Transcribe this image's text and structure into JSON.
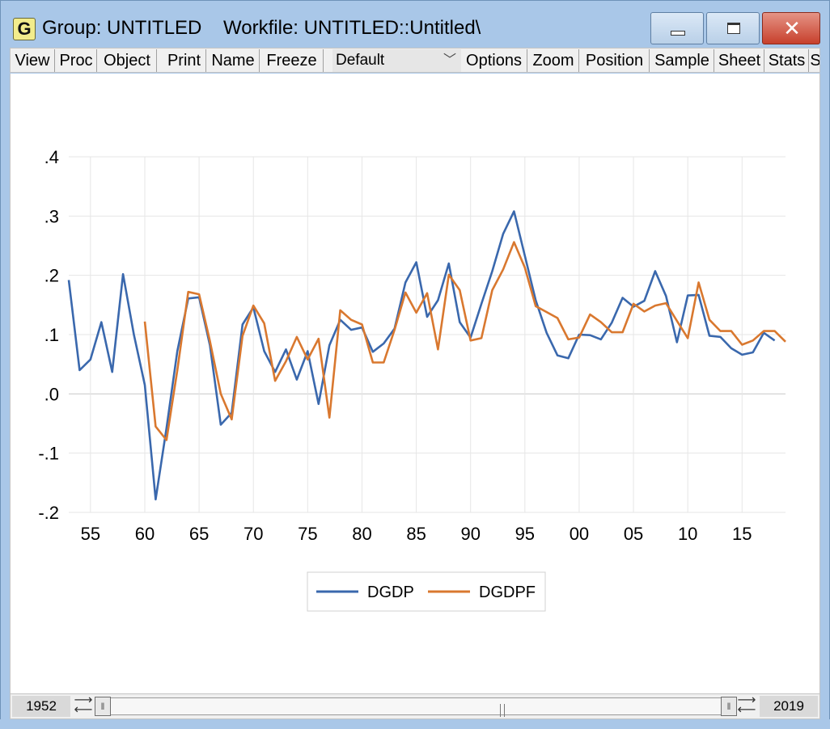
{
  "window": {
    "icon_letter": "G",
    "title": "Group: UNTITLED    Workfile: UNTITLED::Untitled\\"
  },
  "toolbar": {
    "buttons": [
      "View",
      "Proc",
      "Object",
      "Print",
      "Name",
      "Freeze",
      "Options",
      "Zoom",
      "Position",
      "Sample",
      "Sheet",
      "Stats",
      "S"
    ],
    "dropdown_value": "Default"
  },
  "sample": {
    "start": "1952",
    "end": "2019"
  },
  "colors": {
    "dgdp": "#3a68ad",
    "dgdpf": "#d9782f",
    "window_frame": "#a9c7e8"
  },
  "icons": {
    "minimize": "minimize-icon",
    "maximize": "maximize-icon",
    "close": "close-icon",
    "chevron": "chevron-down-icon"
  },
  "chart_data": {
    "type": "line",
    "ylim": [
      -0.2,
      0.4
    ],
    "yticks": [
      {
        "v": 0.4,
        "label": ".4"
      },
      {
        "v": 0.3,
        "label": ".3"
      },
      {
        "v": 0.2,
        "label": ".2"
      },
      {
        "v": 0.1,
        "label": ".1"
      },
      {
        "v": 0.0,
        "label": ".0"
      },
      {
        "v": -0.1,
        "label": "-.1"
      },
      {
        "v": -0.2,
        "label": "-.2"
      }
    ],
    "xlim": [
      1953,
      2019
    ],
    "xticks": [
      {
        "v": 1955,
        "label": "55"
      },
      {
        "v": 1960,
        "label": "60"
      },
      {
        "v": 1965,
        "label": "65"
      },
      {
        "v": 1970,
        "label": "70"
      },
      {
        "v": 1975,
        "label": "75"
      },
      {
        "v": 1980,
        "label": "80"
      },
      {
        "v": 1985,
        "label": "85"
      },
      {
        "v": 1990,
        "label": "90"
      },
      {
        "v": 1995,
        "label": "95"
      },
      {
        "v": 2000,
        "label": "00"
      },
      {
        "v": 2005,
        "label": "05"
      },
      {
        "v": 2010,
        "label": "10"
      },
      {
        "v": 2015,
        "label": "15"
      }
    ],
    "grid": true,
    "legend_position": "bottom-center",
    "series": [
      {
        "name": "DGDP",
        "start_year": 1953,
        "values": [
          0.192,
          0.04,
          0.058,
          0.121,
          0.037,
          0.202,
          0.1,
          0.015,
          -0.178,
          -0.058,
          0.072,
          0.161,
          0.163,
          0.082,
          -0.052,
          -0.032,
          0.117,
          0.146,
          0.072,
          0.037,
          0.075,
          0.024,
          0.072,
          -0.017,
          0.082,
          0.125,
          0.108,
          0.112,
          0.071,
          0.085,
          0.11,
          0.188,
          0.222,
          0.13,
          0.158,
          0.22,
          0.121,
          0.095,
          0.152,
          0.207,
          0.27,
          0.308,
          0.233,
          0.158,
          0.103,
          0.065,
          0.06,
          0.1,
          0.099,
          0.092,
          0.12,
          0.162,
          0.147,
          0.157,
          0.207,
          0.165,
          0.087,
          0.166,
          0.167,
          0.098,
          0.096,
          0.077,
          0.066,
          0.07,
          0.103,
          0.09
        ]
      },
      {
        "name": "DGDPF",
        "start_year": 1960,
        "values": [
          0.122,
          -0.055,
          -0.078,
          0.04,
          0.172,
          0.168,
          0.089,
          0.0,
          -0.043,
          0.098,
          0.149,
          0.119,
          0.022,
          0.055,
          0.096,
          0.058,
          0.093,
          -0.04,
          0.141,
          0.125,
          0.117,
          0.053,
          0.053,
          0.108,
          0.171,
          0.137,
          0.17,
          0.075,
          0.201,
          0.175,
          0.09,
          0.094,
          0.175,
          0.21,
          0.256,
          0.213,
          0.148,
          0.138,
          0.128,
          0.092,
          0.095,
          0.134,
          0.121,
          0.104,
          0.104,
          0.152,
          0.139,
          0.149,
          0.153,
          0.123,
          0.094,
          0.188,
          0.125,
          0.106,
          0.106,
          0.083,
          0.09,
          0.106,
          0.106,
          0.088
        ]
      }
    ]
  }
}
